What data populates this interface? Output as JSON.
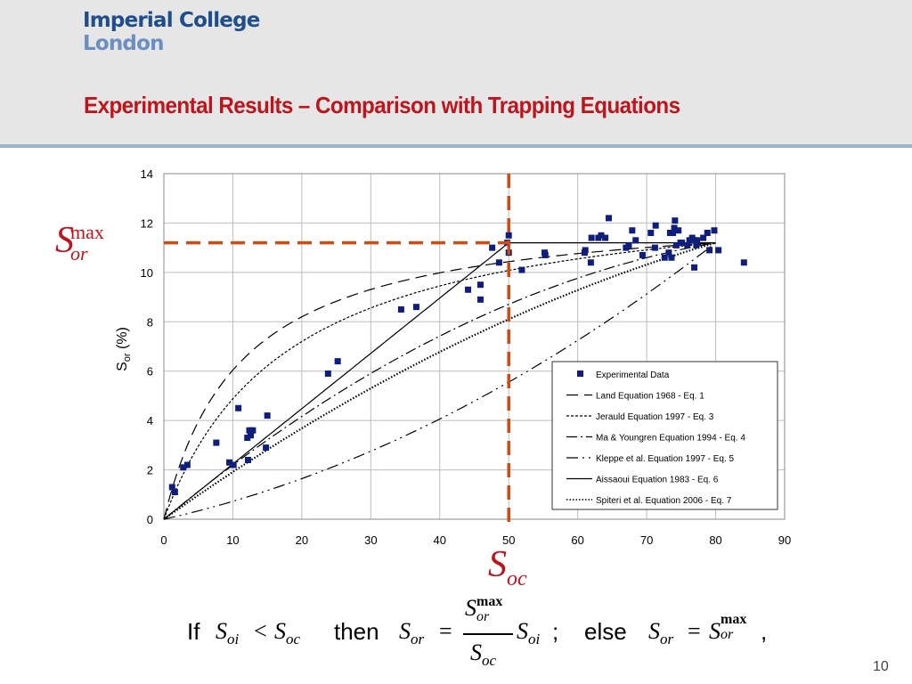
{
  "header": {
    "logo_line1": "Imperial College",
    "logo_line2": "London",
    "title": "Experimental Results – Comparison with Trapping Equations"
  },
  "colors": {
    "accent": "#c0141c",
    "orange_guide": "#d04a12",
    "marker": "#0f1e7a",
    "header_bg": "#e6e6e6"
  },
  "annotations": {
    "sor_max": {
      "base": "S",
      "sup": "max",
      "sub": "or"
    },
    "soc": {
      "base": "S",
      "sub": "oc"
    }
  },
  "formula": {
    "if_word": "If",
    "cond_lhs": "S",
    "cond_lhs_sub": "oi",
    "cond_op": "<",
    "cond_rhs": "S",
    "cond_rhs_sub": "oc",
    "then_word": "then",
    "eq1_lhs": "S",
    "eq1_lhs_sub": "or",
    "eq1_eq": "=",
    "frac_num": "S",
    "frac_num_sup": "max",
    "frac_num_sub": "or",
    "frac_den": "S",
    "frac_den_sub": "oc",
    "eq1_tail": "S",
    "eq1_tail_sub": "oi",
    "semicolon": ";",
    "else_word": "else",
    "eq2_lhs": "S",
    "eq2_lhs_sub": "or",
    "eq2_eq": "=",
    "eq2_rhs": "S",
    "eq2_rhs_sup": "max",
    "eq2_rhs_sub": "or",
    "comma": ","
  },
  "page_number": "10",
  "chart_data": {
    "type": "scatter",
    "ylabel_main": "S",
    "ylabel_sub": "or",
    "ylabel_tail": " (%)",
    "xlim": [
      0,
      90
    ],
    "ylim": [
      0,
      14
    ],
    "x_ticks": [
      0,
      10,
      20,
      30,
      40,
      50,
      60,
      70,
      80,
      90
    ],
    "y_ticks": [
      0,
      2,
      4,
      6,
      8,
      10,
      12,
      14
    ],
    "grid": true,
    "legend_position": "bottom-right",
    "guides": {
      "soc": 50,
      "sor_max": 11.2
    },
    "series": [
      {
        "name": "Experimental Data",
        "kind": "points",
        "points": [
          [
            1.2,
            1.3
          ],
          [
            1.6,
            1.1
          ],
          [
            2.8,
            2.1
          ],
          [
            3.4,
            2.2
          ],
          [
            7.6,
            3.1
          ],
          [
            9.5,
            2.3
          ],
          [
            10.1,
            2.2
          ],
          [
            10.8,
            4.5
          ],
          [
            12.1,
            3.3
          ],
          [
            12.4,
            3.6
          ],
          [
            12.6,
            3.4
          ],
          [
            12.9,
            3.6
          ],
          [
            12.2,
            2.4
          ],
          [
            14.8,
            2.9
          ],
          [
            15.0,
            4.2
          ],
          [
            23.8,
            5.9
          ],
          [
            25.2,
            6.4
          ],
          [
            34.4,
            8.5
          ],
          [
            36.6,
            8.6
          ],
          [
            44.1,
            9.3
          ],
          [
            45.9,
            9.5
          ],
          [
            45.9,
            8.9
          ],
          [
            47.6,
            11.0
          ],
          [
            48.6,
            10.4
          ],
          [
            49.8,
            11.2
          ],
          [
            50.0,
            11.5
          ],
          [
            50.0,
            10.8
          ],
          [
            51.9,
            10.1
          ],
          [
            55.2,
            10.8
          ],
          [
            55.3,
            10.7
          ],
          [
            61.0,
            10.8
          ],
          [
            61.1,
            10.9
          ],
          [
            61.9,
            10.4
          ],
          [
            62.0,
            11.4
          ],
          [
            63.0,
            11.4
          ],
          [
            63.4,
            11.5
          ],
          [
            64.0,
            11.4
          ],
          [
            64.5,
            12.2
          ],
          [
            67.0,
            11.0
          ],
          [
            67.4,
            11.1
          ],
          [
            67.9,
            11.7
          ],
          [
            68.4,
            11.3
          ],
          [
            69.4,
            10.7
          ],
          [
            70.6,
            11.6
          ],
          [
            71.2,
            11.0
          ],
          [
            71.3,
            11.9
          ],
          [
            72.6,
            10.6
          ],
          [
            73.2,
            10.8
          ],
          [
            73.4,
            11.6
          ],
          [
            73.6,
            10.6
          ],
          [
            73.8,
            11.6
          ],
          [
            74.0,
            11.8
          ],
          [
            74.1,
            12.1
          ],
          [
            74.3,
            11.1
          ],
          [
            74.6,
            11.7
          ],
          [
            74.9,
            11.2
          ],
          [
            75.1,
            11.2
          ],
          [
            75.9,
            11.1
          ],
          [
            76.2,
            11.3
          ],
          [
            76.6,
            11.4
          ],
          [
            76.9,
            10.2
          ],
          [
            76.9,
            11.3
          ],
          [
            77.2,
            11.1
          ],
          [
            77.3,
            11.3
          ],
          [
            78.2,
            11.4
          ],
          [
            78.8,
            11.6
          ],
          [
            79.1,
            10.9
          ],
          [
            79.8,
            11.7
          ],
          [
            80.4,
            10.9
          ],
          [
            84.1,
            10.4
          ]
        ]
      },
      {
        "name": "Land Equation 1968 - Eq. 1",
        "kind": "curve",
        "model": "land",
        "param": 0.09,
        "dash": "13,7"
      },
      {
        "name": "Jerauld Equation 1997 - Eq. 3",
        "kind": "curve",
        "model": "land",
        "param": 0.055,
        "dash": "3,2"
      },
      {
        "name": "Ma & Youngren Equation 1994 - Eq. 4",
        "kind": "curve",
        "model": "ma",
        "param": 0.55,
        "dash": "12,4,2,4"
      },
      {
        "name": "Kleppe et al. Equation 1997 - Eq. 5",
        "kind": "curve",
        "model": "ma",
        "param": 0.32,
        "dash": "13,5,2,5,2,5"
      },
      {
        "name": "Aissaoui Equation 1983 - Eq. 6",
        "kind": "curve",
        "model": "aissaoui",
        "dash": ""
      },
      {
        "name": "Spiteri et al. Equation 2006 - Eq. 7",
        "kind": "curve",
        "model": "ma",
        "param": 0.4,
        "dash": "1.5,2"
      }
    ],
    "curve_end": [
      80,
      11.2
    ]
  }
}
